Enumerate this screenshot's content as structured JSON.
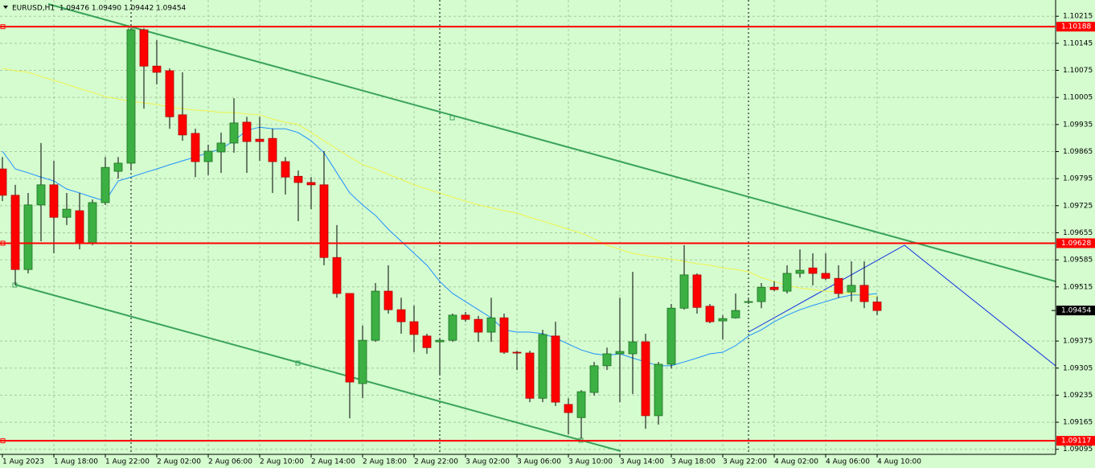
{
  "chart_data": {
    "type": "candlestick",
    "title": "EURUSD,H1  1.09476 1.09490 1.09442 1.09454",
    "categories": [
      "1 Aug 2023",
      null,
      null,
      null,
      "1 Aug 18:00",
      null,
      null,
      null,
      "1 Aug 22:00",
      null,
      null,
      null,
      "2 Aug 02:00",
      null,
      null,
      null,
      "2 Aug 06:00",
      null,
      null,
      null,
      "2 Aug 10:00",
      null,
      null,
      null,
      "2 Aug 14:00",
      null,
      null,
      null,
      "2 Aug 18:00",
      null,
      null,
      null,
      "2 Aug 22:00",
      null,
      null,
      null,
      "3 Aug 02:00",
      null,
      null,
      null,
      "3 Aug 06:00",
      null,
      null,
      null,
      "3 Aug 10:00",
      null,
      null,
      null,
      "3 Aug 14:00",
      null,
      null,
      null,
      "3 Aug 18:00",
      null,
      null,
      null,
      "3 Aug 22:00",
      null,
      null,
      null,
      "4 Aug 02:00",
      null,
      null,
      null,
      "4 Aug 06:00",
      null,
      null,
      null,
      "4 Aug 10:00"
    ],
    "open": [
      1.0982,
      1.09752,
      1.0956,
      1.09727,
      1.09779,
      1.09695,
      1.09712,
      1.09629,
      1.09733,
      1.09814,
      1.09835,
      1.1018,
      1.10086,
      1.10074,
      1.0996,
      1.09912,
      1.09839,
      1.09864,
      1.09887,
      1.09941,
      1.09897,
      1.09899,
      1.09839,
      1.09801,
      1.09785,
      1.09779,
      1.09591,
      1.09498,
      1.09265,
      1.09377,
      1.09504,
      1.09456,
      1.09425,
      1.09388,
      1.09373,
      1.09377,
      1.09442,
      1.09431,
      1.09398,
      1.09435,
      1.09346,
      1.09344,
      1.09227,
      1.09388,
      1.09211,
      1.09177,
      1.09242,
      1.09311,
      1.09342,
      1.09342,
      1.09373,
      1.09182,
      1.09315,
      1.0946,
      1.09546,
      1.09465,
      1.09427,
      1.09435,
      1.09475,
      1.09477,
      1.09514,
      1.09504,
      1.0955,
      1.09564,
      1.0955,
      1.09537,
      1.09502,
      1.09519,
      1.09476
    ],
    "high": [
      1.09851,
      1.09779,
      1.09758,
      1.09887,
      1.09841,
      1.09758,
      1.09758,
      1.09741,
      1.09851,
      1.09851,
      1.10184,
      1.10184,
      1.10153,
      1.1008,
      1.1007,
      1.09924,
      1.09883,
      1.09914,
      1.10003,
      1.09955,
      1.09955,
      1.09924,
      1.09851,
      1.09816,
      1.09799,
      1.09866,
      1.09675,
      1.09498,
      1.09415,
      1.09525,
      1.09571,
      1.09487,
      1.09467,
      1.09394,
      1.09383,
      1.09446,
      1.0945,
      1.0944,
      1.09487,
      1.09446,
      1.0935,
      1.0935,
      1.09404,
      1.09425,
      1.09227,
      1.09248,
      1.09321,
      1.09358,
      1.09487,
      1.09554,
      1.09394,
      1.09321,
      1.09471,
      1.09623,
      1.0955,
      1.09471,
      1.09442,
      1.09498,
      1.09483,
      1.09525,
      1.09529,
      1.09571,
      1.09612,
      1.09602,
      1.09602,
      1.09571,
      1.09581,
      1.09581,
      1.0949
    ],
    "low": [
      1.09737,
      1.09519,
      1.0955,
      1.09633,
      1.09602,
      1.09675,
      1.09612,
      1.09623,
      1.09727,
      1.09795,
      1.0982,
      1.09976,
      1.10039,
      1.09924,
      1.09893,
      1.09799,
      1.09804,
      1.0981,
      1.09862,
      1.0981,
      1.09841,
      1.09758,
      1.09754,
      1.09685,
      1.09716,
      1.09571,
      1.09487,
      1.09175,
      1.09227,
      1.09373,
      1.09446,
      1.09394,
      1.09346,
      1.09342,
      1.0929,
      1.09373,
      1.09425,
      1.09373,
      1.09373,
      1.09342,
      1.093,
      1.09217,
      1.09217,
      1.09207,
      1.09134,
      1.09123,
      1.09234,
      1.093,
      1.09217,
      1.09238,
      1.09148,
      1.09159,
      1.09304,
      1.09456,
      1.09446,
      1.09421,
      1.09379,
      1.09433,
      1.09471,
      1.0946,
      1.09504,
      1.09498,
      1.09539,
      1.09519,
      1.09533,
      1.09487,
      1.09477,
      1.0946,
      1.09442
    ],
    "close": [
      1.09752,
      1.0956,
      1.09727,
      1.09779,
      1.09695,
      1.09716,
      1.09629,
      1.09733,
      1.09824,
      1.09835,
      1.1018,
      1.10086,
      1.1007,
      1.09955,
      1.09908,
      1.09839,
      1.09866,
      1.09887,
      1.09939,
      1.09891,
      1.09891,
      1.09839,
      1.09799,
      1.09785,
      1.09779,
      1.09591,
      1.09498,
      1.09269,
      1.09377,
      1.09504,
      1.09456,
      1.09425,
      1.09392,
      1.09358,
      1.09377,
      1.09442,
      1.09431,
      1.09398,
      1.09435,
      1.09346,
      1.09344,
      1.09227,
      1.09392,
      1.09217,
      1.0919,
      1.09244,
      1.09311,
      1.09342,
      1.09348,
      1.09373,
      1.09182,
      1.09315,
      1.0946,
      1.09546,
      1.09462,
      1.09425,
      1.09433,
      1.09454,
      1.09477,
      1.09514,
      1.09508,
      1.0955,
      1.09558,
      1.0955,
      1.09537,
      1.09498,
      1.09519,
      1.09477,
      1.09454
    ],
    "bull_color": "#3cb043",
    "bear_color": "#ff0000",
    "ma_lines": [
      {
        "color": "#1e90ff",
        "values": [
          1.09866,
          1.0982,
          1.0981,
          1.09799,
          1.09789,
          1.09768,
          1.09758,
          1.09747,
          1.09737,
          1.09789,
          1.09799,
          1.0981,
          1.0982,
          1.09831,
          1.09841,
          1.09851,
          1.09862,
          1.09872,
          1.09893,
          1.0992,
          1.09928,
          1.09924,
          1.09924,
          1.09914,
          1.09893,
          1.09862,
          1.0981,
          1.09758,
          1.09727,
          1.097,
          1.09664,
          1.09633,
          1.09602,
          1.09571,
          1.09529,
          1.09498,
          1.09477,
          1.09456,
          1.09435,
          1.09404,
          1.09398,
          1.09398,
          1.09394,
          1.09383,
          1.09367,
          1.09352,
          1.09342,
          1.09338,
          1.09342,
          1.09331,
          1.09321,
          1.09311,
          1.09311,
          1.09321,
          1.09331,
          1.09342,
          1.09346,
          1.09363,
          1.09388,
          1.09404,
          1.09425,
          1.09442,
          1.09456,
          1.09467,
          1.09477,
          1.09487,
          1.09494,
          1.09494,
          1.09498
        ]
      },
      {
        "color": "#f2f24a",
        "values": [
          1.1008,
          1.10074,
          1.1007,
          1.10059,
          1.10049,
          1.10039,
          1.10028,
          1.10018,
          1.10007,
          1.10001,
          1.09995,
          1.09991,
          1.09987,
          1.0998,
          1.09976,
          1.09972,
          1.0997,
          1.09966,
          1.09966,
          1.09962,
          1.0996,
          1.09949,
          1.09941,
          1.09935,
          1.09914,
          1.09893,
          1.09872,
          1.09851,
          1.09831,
          1.0982,
          1.09806,
          1.09793,
          1.09779,
          1.09768,
          1.09758,
          1.09747,
          1.09737,
          1.09727,
          1.0972,
          1.09712,
          1.09706,
          1.09695,
          1.09685,
          1.09675,
          1.09664,
          1.09654,
          1.09639,
          1.09623,
          1.09612,
          1.09602,
          1.09596,
          1.09591,
          1.09587,
          1.09581,
          1.09575,
          1.09571,
          1.09564,
          1.0956,
          1.09554,
          1.09539,
          1.09529,
          1.09519,
          1.09512,
          1.09508,
          1.09504,
          1.09502,
          1.09498,
          1.09494,
          1.09489
        ]
      }
    ],
    "levels": [
      1.10188,
      1.09628,
      1.09117
    ],
    "level_color": "#ff0000",
    "last_price": 1.09454,
    "ylim": [
      1.09082,
      1.10257
    ],
    "yticks": [
      1.10215,
      1.10145,
      1.10075,
      1.10005,
      1.09935,
      1.09865,
      1.09795,
      1.09725,
      1.09655,
      1.09585,
      1.09515,
      1.09375,
      1.09305,
      1.09235,
      1.09165,
      1.09095
    ],
    "grid": true
  }
}
